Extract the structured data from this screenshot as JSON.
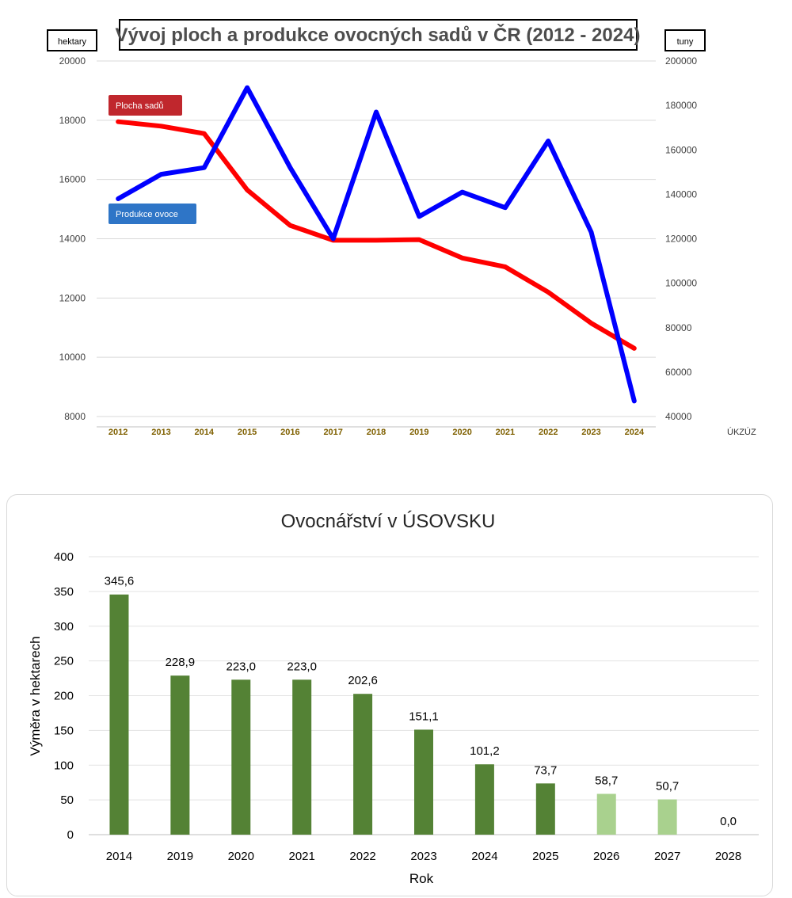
{
  "chart_data": [
    {
      "type": "line",
      "title": "Vývoj ploch a produkce ovocných sadů v ČR (2012 - 2024)",
      "y_left_unit": "hektary",
      "y_right_unit": "tuny",
      "source": "ÚKZÚZ",
      "x": [
        "2012",
        "2013",
        "2014",
        "2015",
        "2016",
        "2017",
        "2018",
        "2019",
        "2020",
        "2021",
        "2022",
        "2023",
        "2024"
      ],
      "y_left_ticks": [
        "20000",
        "18000",
        "16000",
        "14000",
        "12000",
        "10000",
        "8000"
      ],
      "y_right_ticks": [
        "200000",
        "180000",
        "160000",
        "140000",
        "120000",
        "100000",
        "80000",
        "60000",
        "40000"
      ],
      "ylim_left": [
        8000,
        20000
      ],
      "ylim_right": [
        40000,
        200000
      ],
      "series": [
        {
          "name": "Plocha sadů",
          "axis": "left",
          "color": "#ff0000",
          "values": [
            17950,
            17800,
            17550,
            15650,
            14450,
            13950,
            13950,
            13970,
            13350,
            13050,
            12200,
            11150,
            10300
          ]
        },
        {
          "name": "Produkce ovoce",
          "axis": "right",
          "color": "#0000ff",
          "values": [
            138000,
            149000,
            152000,
            188000,
            152000,
            120000,
            177000,
            130000,
            141000,
            134000,
            164000,
            123000,
            47000
          ]
        }
      ],
      "legend_label_colors": {
        "Plocha sadů": "#c0272d",
        "Produkce ovoce": "#2e75c7"
      },
      "grid": true
    },
    {
      "type": "bar",
      "title": "Ovocnářství v ÚSOVSKU",
      "xlabel": "Rok",
      "ylabel": "Výměra v hektarech",
      "categories": [
        "2014",
        "2019",
        "2020",
        "2021",
        "2022",
        "2023",
        "2024",
        "2025",
        "2026",
        "2027",
        "2028"
      ],
      "values": [
        345.6,
        228.9,
        223.0,
        223.0,
        202.6,
        151.1,
        101.2,
        73.7,
        58.7,
        50.7,
        0.0
      ],
      "data_labels": [
        "345,6",
        "228,9",
        "223,0",
        "223,0",
        "202,6",
        "151,1",
        "101,2",
        "73,7",
        "58,7",
        "50,7",
        "0,0"
      ],
      "y_ticks": [
        "0",
        "50",
        "100",
        "150",
        "200",
        "250",
        "300",
        "350",
        "400"
      ],
      "ylim": [
        0,
        400
      ],
      "bar_colors": [
        "#548235",
        "#548235",
        "#548235",
        "#548235",
        "#548235",
        "#548235",
        "#548235",
        "#548235",
        "#a9d18e",
        "#a9d18e",
        "#a9d18e"
      ],
      "grid": true
    }
  ]
}
